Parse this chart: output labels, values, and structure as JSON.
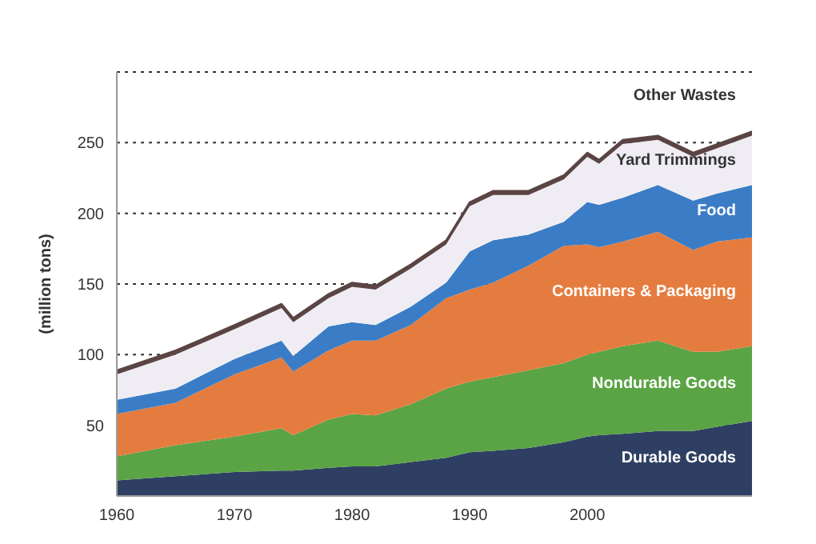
{
  "chart_data": {
    "type": "area",
    "stacked": true,
    "ylabel": "(million tons)",
    "x": [
      1960,
      1965,
      1970,
      1974,
      1975,
      1978,
      1980,
      1982,
      1985,
      1988,
      1990,
      1992,
      1995,
      1998,
      2000,
      2001,
      2003,
      2006,
      2009,
      2011,
      2014
    ],
    "xlim": [
      1960,
      2014
    ],
    "xticks": [
      1960,
      1970,
      1980,
      1990,
      2000
    ],
    "ylim": [
      0,
      300
    ],
    "yticks": [
      50,
      100,
      150,
      200,
      250
    ],
    "grid": "y",
    "legend": false,
    "series": [
      {
        "name": "Durable Goods",
        "color": "#2e3f63",
        "values": [
          11,
          14,
          17,
          18,
          18,
          20,
          21,
          21,
          24,
          27,
          31,
          32,
          34,
          38,
          42,
          43,
          44,
          46,
          46,
          49,
          53
        ]
      },
      {
        "name": "Nondurable Goods",
        "color": "#5aa445",
        "values": [
          17,
          22,
          25,
          30,
          25,
          34,
          37,
          36,
          41,
          49,
          50,
          52,
          55,
          56,
          58,
          59,
          62,
          64,
          56,
          53,
          53
        ]
      },
      {
        "name": "Containers & Packaging",
        "color": "#e57c3f",
        "values": [
          30,
          30,
          44,
          50,
          45,
          49,
          52,
          53,
          56,
          64,
          65,
          67,
          74,
          83,
          78,
          74,
          74,
          77,
          72,
          78,
          77
        ]
      },
      {
        "name": "Food",
        "color": "#3a7dc6",
        "values": [
          10,
          10,
          11,
          12,
          11,
          17,
          13,
          11,
          13,
          11,
          27,
          30,
          22,
          17,
          30,
          30,
          31,
          33,
          35,
          34,
          37
        ]
      },
      {
        "name": "Yard Trimmings",
        "color": "#efedf3",
        "values": [
          18,
          24,
          21,
          23,
          24,
          20,
          25,
          25,
          27,
          27,
          32,
          32,
          28,
          30,
          32,
          29,
          38,
          32,
          31,
          32,
          35
        ]
      },
      {
        "name": "Other Wastes",
        "color": "#5a4444",
        "values": [
          3,
          3,
          3,
          3,
          3,
          3,
          3,
          3,
          3,
          3,
          3,
          3,
          3,
          3,
          3,
          3,
          3,
          3,
          3,
          3,
          3
        ]
      }
    ]
  }
}
